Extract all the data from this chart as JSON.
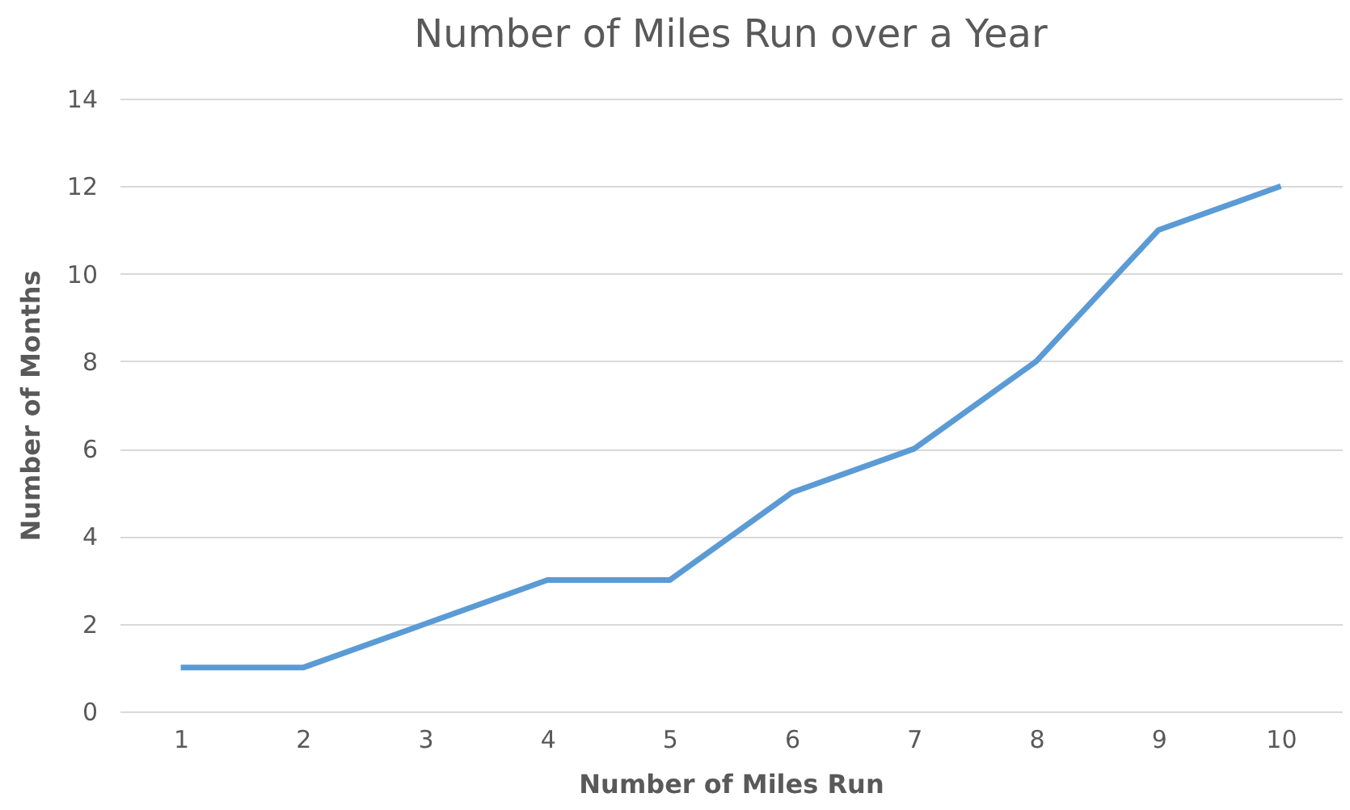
{
  "chart_data": {
    "type": "line",
    "title": "Number of Miles Run over a Year",
    "xlabel": "Number of Miles Run",
    "ylabel": "Number of Months",
    "categories": [
      "1",
      "2",
      "3",
      "4",
      "5",
      "6",
      "7",
      "8",
      "9",
      "10"
    ],
    "series": [
      {
        "color": "#5b9bd5",
        "values": [
          1,
          1,
          2,
          3,
          3,
          5,
          6,
          8,
          11,
          12
        ]
      }
    ],
    "ylim": [
      0,
      14
    ],
    "yticks": [
      0,
      2,
      4,
      6,
      8,
      10,
      12,
      14
    ],
    "grid": "y",
    "legend": false,
    "marker": "none",
    "line_style": "solid"
  }
}
